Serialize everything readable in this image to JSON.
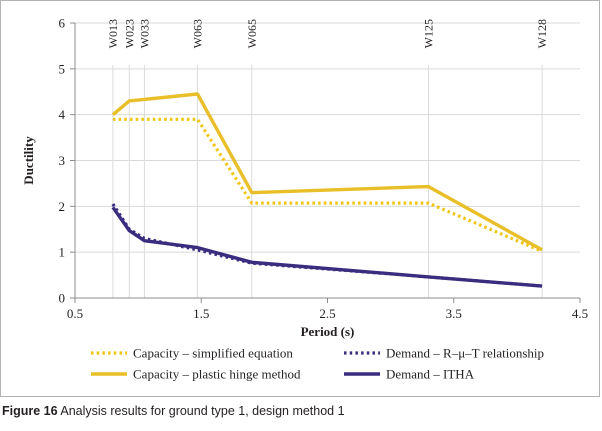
{
  "chart_data": {
    "type": "line",
    "title": "",
    "xlabel": "Period (s)",
    "ylabel": "Ductility",
    "xlim": [
      0.5,
      4.5
    ],
    "ylim": [
      0,
      6
    ],
    "xticks": [
      "0.5",
      "1.5",
      "2.5",
      "3.5",
      "4.5"
    ],
    "yticks": [
      "0",
      "1",
      "2",
      "3",
      "4",
      "5",
      "6"
    ],
    "xtick_values": [
      0.5,
      1.5,
      2.5,
      3.5,
      4.5
    ],
    "ytick_values": [
      0,
      1,
      2,
      3,
      4,
      5,
      6
    ],
    "grid": "horizontal",
    "markers": [
      {
        "label": "W013",
        "x": 0.8
      },
      {
        "label": "W023",
        "x": 0.93
      },
      {
        "label": "W033",
        "x": 1.05
      },
      {
        "label": "W063",
        "x": 1.47
      },
      {
        "label": "W065",
        "x": 1.9
      },
      {
        "label": "W125",
        "x": 3.3
      },
      {
        "label": "W128",
        "x": 4.2
      }
    ],
    "series": [
      {
        "name": "Capacity – simplified equation",
        "style": "dotted",
        "color": "#f1c40f",
        "x": [
          0.8,
          1.47,
          1.9,
          3.3,
          4.2
        ],
        "values": [
          3.9,
          3.9,
          2.07,
          2.07,
          1.02
        ]
      },
      {
        "name": "Demand – R–μ–T relationship",
        "style": "dotted",
        "color": "#3a2d7f",
        "x": [
          0.8,
          0.93,
          1.05,
          1.47,
          1.9,
          3.3,
          4.2
        ],
        "values": [
          2.05,
          1.5,
          1.3,
          1.05,
          0.76,
          0.46,
          0.26
        ]
      },
      {
        "name": "Capacity – plastic hinge method",
        "style": "solid",
        "color": "#e9bf29",
        "x": [
          0.8,
          0.93,
          1.47,
          1.9,
          3.3,
          4.2
        ],
        "values": [
          4.0,
          4.3,
          4.45,
          2.3,
          2.43,
          1.05
        ]
      },
      {
        "name": "Demand – ITHA",
        "style": "solid",
        "color": "#3a2d7f",
        "x": [
          0.8,
          0.93,
          1.05,
          1.47,
          1.9,
          3.3,
          4.2
        ],
        "values": [
          1.98,
          1.47,
          1.25,
          1.1,
          0.78,
          0.46,
          0.26
        ]
      }
    ]
  },
  "caption": {
    "label": "Figure 16",
    "text": "Analysis results for ground type 1, design method 1"
  }
}
